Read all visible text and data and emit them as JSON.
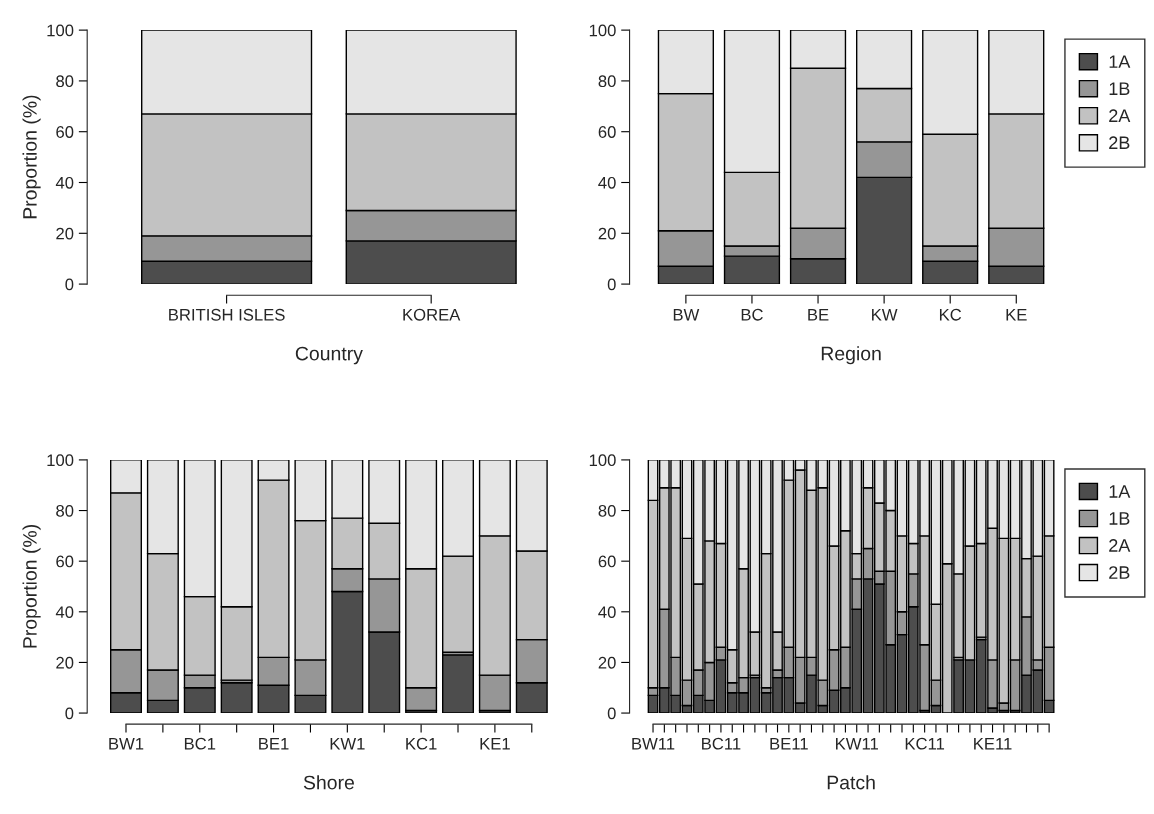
{
  "chart_data": [
    {
      "type": "bar",
      "stacked": true,
      "xlabel": "Country",
      "ylabel": "Proportion (%)",
      "categories": [
        "BRITISH ISLES",
        "KOREA"
      ],
      "ylim": [
        0,
        100
      ],
      "yticks": [
        0,
        20,
        40,
        60,
        80,
        100
      ],
      "series": [
        {
          "color": "#4d4d4d",
          "values": [
            9,
            17
          ]
        },
        {
          "color": "#969696",
          "values": [
            10,
            12
          ]
        },
        {
          "color": "#c2c2c2",
          "values": [
            48,
            38
          ]
        },
        {
          "color": "#e5e5e5",
          "values": [
            33,
            33
          ]
        }
      ]
    },
    {
      "type": "bar",
      "stacked": true,
      "xlabel": "Region",
      "categories": [
        "BW",
        "BC",
        "BE",
        "KW",
        "KC",
        "KE"
      ],
      "ylim": [
        0,
        100
      ],
      "yticks": [
        0,
        20,
        40,
        60,
        80,
        100
      ],
      "legend": "top right",
      "series": [
        {
          "name": "1A",
          "color": "#4d4d4d",
          "values": [
            7,
            11,
            10,
            42,
            9,
            7
          ]
        },
        {
          "name": "1B",
          "color": "#969696",
          "values": [
            14,
            4,
            12,
            14,
            6,
            15
          ]
        },
        {
          "name": "2A",
          "color": "#c2c2c2",
          "values": [
            54,
            29,
            63,
            21,
            44,
            45
          ]
        },
        {
          "name": "2B",
          "color": "#e5e5e5",
          "values": [
            25,
            56,
            15,
            23,
            41,
            33
          ]
        }
      ]
    },
    {
      "type": "bar",
      "stacked": true,
      "xlabel": "Shore",
      "ylabel": "Proportion (%)",
      "categories": [
        "BW1",
        null,
        "BC1",
        null,
        "BE1",
        null,
        "KW1",
        null,
        "KC1",
        null,
        "KE1",
        null
      ],
      "ylim": [
        0,
        100
      ],
      "yticks": [
        0,
        20,
        40,
        60,
        80,
        100
      ],
      "series": [
        {
          "color": "#4d4d4d",
          "values": [
            8,
            5,
            10,
            12,
            11,
            7,
            48,
            32,
            1,
            23,
            1,
            12
          ]
        },
        {
          "color": "#969696",
          "values": [
            17,
            12,
            5,
            1,
            11,
            14,
            9,
            21,
            9,
            1,
            14,
            17
          ]
        },
        {
          "color": "#c2c2c2",
          "values": [
            62,
            46,
            31,
            29,
            70,
            55,
            20,
            22,
            47,
            38,
            55,
            35
          ]
        },
        {
          "color": "#e5e5e5",
          "values": [
            13,
            37,
            54,
            58,
            8,
            24,
            23,
            25,
            43,
            38,
            30,
            36
          ]
        }
      ]
    },
    {
      "type": "bar",
      "stacked": true,
      "xlabel": "Patch",
      "categories": [
        "BW11",
        null,
        null,
        null,
        null,
        null,
        "BC11",
        null,
        null,
        null,
        null,
        null,
        "BE11",
        null,
        null,
        null,
        null,
        null,
        "KW11",
        null,
        null,
        null,
        null,
        null,
        "KC11",
        null,
        null,
        null,
        null,
        null,
        "KE11",
        null,
        null,
        null,
        null,
        null
      ],
      "ylim": [
        0,
        100
      ],
      "yticks": [
        0,
        20,
        40,
        60,
        80,
        100
      ],
      "legend": "top right",
      "series": [
        {
          "name": "1A",
          "color": "#4d4d4d",
          "values": [
            7,
            10,
            7,
            3,
            7,
            5,
            21,
            8,
            8,
            14,
            8,
            14,
            14,
            4,
            15,
            3,
            9,
            10,
            41,
            53,
            51,
            27,
            31,
            42,
            1,
            3,
            0,
            21,
            21,
            29,
            2,
            1,
            1,
            15,
            17,
            5
          ]
        },
        {
          "name": "1B",
          "color": "#969696",
          "values": [
            3,
            31,
            15,
            10,
            10,
            15,
            5,
            4,
            6,
            1,
            2,
            3,
            12,
            18,
            7,
            10,
            16,
            16,
            12,
            12,
            5,
            29,
            9,
            13,
            26,
            10,
            0,
            1,
            0,
            1,
            19,
            3,
            20,
            23,
            4,
            21
          ]
        },
        {
          "name": "2A",
          "color": "#c2c2c2",
          "values": [
            74,
            48,
            67,
            56,
            34,
            48,
            41,
            13,
            43,
            17,
            53,
            15,
            66,
            74,
            66,
            76,
            41,
            46,
            10,
            24,
            27,
            24,
            30,
            12,
            43,
            30,
            59,
            33,
            45,
            37,
            52,
            65,
            48,
            23,
            41,
            44
          ]
        },
        {
          "name": "2B",
          "color": "#e5e5e5",
          "values": [
            16,
            11,
            11,
            31,
            49,
            32,
            33,
            75,
            43,
            68,
            37,
            68,
            8,
            4,
            12,
            11,
            34,
            28,
            37,
            11,
            17,
            20,
            30,
            33,
            30,
            57,
            41,
            45,
            34,
            33,
            27,
            31,
            31,
            39,
            38,
            30
          ]
        }
      ]
    }
  ]
}
